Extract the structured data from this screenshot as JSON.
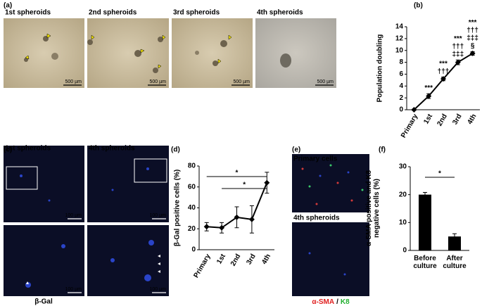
{
  "panels": {
    "a": {
      "label": "(a)",
      "images": [
        {
          "title": "1st spheroids",
          "scale": "500 µm"
        },
        {
          "title": "2nd spheroids",
          "scale": "500 µm"
        },
        {
          "title": "3rd spheroids",
          "scale": "500 µm"
        },
        {
          "title": "4th spheroids",
          "scale": "500 µm"
        }
      ]
    },
    "c": {
      "label": "(c)",
      "images": [
        {
          "title": "1st spheroids",
          "scale": "100 µm"
        },
        {
          "title": "4th spheroids",
          "scale": "100 µm"
        },
        {
          "scale": "100 µm"
        },
        {
          "scale": "100 µm"
        }
      ],
      "caption": "β-Gal"
    },
    "e": {
      "label": "(e)",
      "images": [
        {
          "title": "Primary cells"
        },
        {
          "title": "4th spheroids"
        }
      ],
      "caption": [
        "α-SMA",
        "/",
        "K8"
      ]
    }
  },
  "chart_data": [
    {
      "type": "line",
      "label": "(b)",
      "ylabel": "Population doubling",
      "categories": [
        "Primary",
        "1st",
        "2nd",
        "3rd",
        "4th"
      ],
      "values": [
        0,
        2.3,
        5.2,
        8.0,
        9.5
      ],
      "errors": [
        0.1,
        0.4,
        0.3,
        0.4,
        0.3
      ],
      "color": "#000000",
      "ylim": [
        0,
        14
      ],
      "yticks": [
        0,
        2,
        4,
        6,
        8,
        10,
        12,
        14
      ],
      "annotations": [
        null,
        [
          "***"
        ],
        [
          "***",
          "†††"
        ],
        [
          "***",
          "†††",
          "‡‡‡"
        ],
        [
          "***",
          "†††",
          "‡‡‡",
          "§"
        ]
      ]
    },
    {
      "type": "line",
      "label": "(d)",
      "ylabel": "β-Gal positive cells (%)",
      "categories": [
        "Primary",
        "1st",
        "2nd",
        "3rd",
        "4th"
      ],
      "values": [
        22,
        21,
        31,
        29,
        64
      ],
      "errors": [
        4,
        5,
        10,
        13,
        10
      ],
      "color": "#000000",
      "ylim": [
        0,
        80
      ],
      "yticks": [
        0,
        20,
        40,
        60,
        80
      ],
      "brackets": [
        {
          "from": "Primary",
          "to": "4th",
          "label": "*"
        },
        {
          "from": "1st",
          "to": "4th",
          "label": "*"
        }
      ]
    },
    {
      "type": "bar",
      "label": "(f)",
      "ylabel": "α-SMA positive and K8 negative cells (%)",
      "categories": [
        "Before culture",
        "After culture"
      ],
      "values": [
        20,
        5
      ],
      "errors": [
        0.8,
        1
      ],
      "color": "#000000",
      "ylim": [
        0,
        30
      ],
      "yticks": [
        0,
        10,
        20,
        30
      ],
      "brackets": [
        {
          "from": "Before culture",
          "to": "After culture",
          "label": "*"
        }
      ]
    }
  ]
}
